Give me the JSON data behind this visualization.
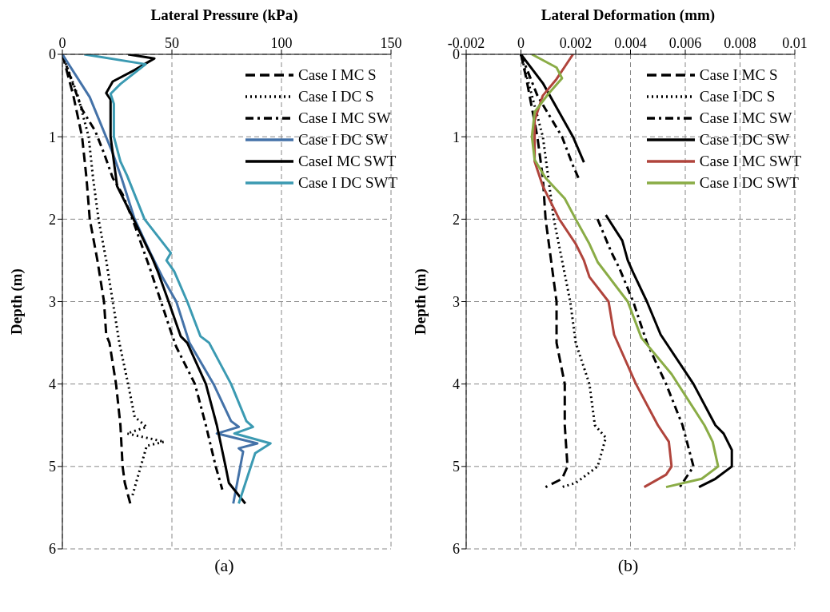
{
  "chart_data": [
    {
      "type": "line",
      "xlabel": "Lateral Pressure (kPa)",
      "ylabel": "Depth (m)",
      "xlim": [
        0,
        150
      ],
      "xticks": [
        0,
        50,
        100,
        150
      ],
      "ylim": [
        6,
        0
      ],
      "yticks": [
        0,
        1,
        2,
        3,
        4,
        5,
        6
      ],
      "grid": true,
      "legend": "top right",
      "annotations": [
        "(a)"
      ],
      "series": [
        {
          "name": "Case I MC S",
          "color": "#000000",
          "line_style": "dashed",
          "x": [
            0,
            5,
            9,
            11,
            12.5,
            16,
            19,
            20,
            21.5,
            24.5,
            26.5,
            27.5,
            28.5,
            31
          ],
          "values": [
            0,
            0.5,
            1,
            1.5,
            2,
            2.5,
            3,
            3.4,
            3.5,
            4,
            4.5,
            5,
            5.2,
            5.45
          ]
        },
        {
          "name": "Case I DC S",
          "color": "#000000",
          "line_style": "dotted",
          "x": [
            0,
            7,
            12,
            14,
            16.5,
            20,
            23,
            26,
            30,
            33,
            38.5,
            29.5,
            46.5,
            38.5,
            32
          ],
          "values": [
            0,
            0.5,
            1,
            1.5,
            2,
            2.5,
            3,
            3.5,
            4,
            4.4,
            4.52,
            4.6,
            4.7,
            4.75,
            5.35
          ]
        },
        {
          "name": "Case I MC SW",
          "color": "#000000",
          "line_style": "dashdot",
          "x": [
            0,
            4,
            9,
            15,
            19,
            23,
            27.5,
            32,
            36,
            40,
            45,
            50,
            52,
            60.5,
            65.5,
            70,
            73
          ],
          "values": [
            0,
            0.3,
            0.67,
            0.93,
            1.2,
            1.5,
            1.7,
            2,
            2.3,
            2.6,
            3,
            3.4,
            3.55,
            4,
            4.5,
            5,
            5.28
          ]
        },
        {
          "name": "Case I DC SW",
          "color": "#4472a8",
          "line_style": "solid",
          "x": [
            0,
            12.5,
            23,
            27,
            33,
            40,
            46,
            52,
            58,
            69,
            77,
            80.5,
            70.5,
            89,
            80.5,
            82.5,
            78
          ],
          "values": [
            0,
            0.52,
            1.2,
            1.5,
            2,
            2.4,
            2.72,
            3,
            3.5,
            4,
            4.45,
            4.52,
            4.6,
            4.72,
            4.78,
            4.82,
            5.45
          ]
        },
        {
          "name": "CaseI MC SWT",
          "color": "#000000",
          "line_style": "solid",
          "x": [
            30,
            42,
            33,
            23,
            20,
            22,
            22,
            23.5,
            25,
            32.5,
            41,
            43.5,
            48.5,
            54,
            57,
            65.5,
            70.5,
            74.5,
            76,
            83.5
          ],
          "values": [
            0,
            0.05,
            0.19,
            0.33,
            0.47,
            0.55,
            1,
            1.3,
            1.6,
            2,
            2.47,
            2.63,
            3,
            3.42,
            3.5,
            4,
            4.5,
            5,
            5.2,
            5.45
          ]
        },
        {
          "name": "Case I DC SWT",
          "color": "#3b9ab2",
          "line_style": "solid",
          "x": [
            10,
            38,
            26.5,
            22,
            23.5,
            23.5,
            26.5,
            29.5,
            37.5,
            49.5,
            47.5,
            51,
            57,
            63,
            67,
            77,
            84,
            87,
            78.5,
            95,
            88,
            80.5
          ],
          "values": [
            0,
            0.12,
            0.36,
            0.48,
            0.6,
            1,
            1.3,
            1.47,
            2,
            2.41,
            2.5,
            2.63,
            3,
            3.42,
            3.5,
            4,
            4.45,
            4.52,
            4.6,
            4.72,
            4.84,
            5.45
          ]
        }
      ]
    },
    {
      "type": "line",
      "xlabel": "Lateral Deformation (mm)",
      "ylabel": "Depth (m)",
      "xlim": [
        -0.002,
        0.01
      ],
      "xticks": [
        -0.002,
        0,
        0.002,
        0.004,
        0.006,
        0.008,
        0.01
      ],
      "ylim": [
        6,
        0
      ],
      "yticks": [
        0,
        1,
        2,
        3,
        4,
        5,
        6
      ],
      "grid": true,
      "legend": "top right",
      "annotations": [
        "(b)"
      ],
      "series": [
        {
          "name": "Case I MC S",
          "color": "#000000",
          "line_style": "dashed",
          "x": [
            0,
            0.0002,
            0.0006,
            0.0008,
            0.0009,
            0.0011,
            0.0013,
            0.0013,
            0.0016,
            0.0016,
            0.0017,
            0.0015,
            0.0009
          ],
          "values": [
            0,
            0.3,
            1,
            1.5,
            2,
            2.5,
            3,
            3.5,
            4,
            4.5,
            5,
            5.15,
            5.25
          ]
        },
        {
          "name": "Case I DC S",
          "color": "#000000",
          "line_style": "dotted",
          "x": [
            0,
            0.0004,
            0.0008,
            0.001,
            0.0012,
            0.0015,
            0.0018,
            0.002,
            0.0025,
            0.0027,
            0.0031,
            0.0028,
            0.002,
            0.0015
          ],
          "values": [
            0,
            0.5,
            1,
            1.5,
            2,
            2.5,
            3,
            3.5,
            4,
            4.5,
            4.65,
            5,
            5.2,
            5.25
          ]
        },
        {
          "name": "Case I MC SW",
          "color": "#000000",
          "line_style": "dashdot",
          "x": [
            0,
            0.0006,
            0.0015,
            0.0019,
            0.0021,
            null,
            0.0028,
            0.0033,
            0.0036,
            0.0041,
            0.0046,
            0.0053,
            0.0059,
            0.0063,
            0.0058
          ],
          "values": [
            0,
            0.5,
            1,
            1.35,
            1.5,
            null,
            2,
            2.4,
            2.6,
            3,
            3.5,
            4,
            4.5,
            5,
            5.25
          ]
        },
        {
          "name": "Case I DC SW",
          "color": "#000000",
          "line_style": "solid",
          "x": [
            0,
            0.0008,
            0.0019,
            0.0023,
            null,
            0.0031,
            0.0037,
            0.0039,
            0.0041,
            0.0046,
            0.0051,
            0.0063,
            0.0071,
            0.0074,
            0.0077,
            0.0077,
            0.0071,
            0.0065
          ],
          "values": [
            0,
            0.35,
            1,
            1.31,
            null,
            1.95,
            2.26,
            2.5,
            2.65,
            3,
            3.4,
            4,
            4.5,
            4.6,
            4.8,
            5,
            5.15,
            5.25
          ]
        },
        {
          "name": "Case I MC SWT",
          "color": "#b0443c",
          "line_style": "solid",
          "x": [
            0.0019,
            0.0016,
            0.0013,
            0.0008,
            0.0005,
            0.0005,
            0.0005,
            0.0006,
            0.0008,
            0.0014,
            0.002,
            0.0023,
            0.0025,
            0.0032,
            0.0034,
            0.0042,
            0.005,
            0.0054,
            0.0055,
            0.0053,
            0.0045
          ],
          "values": [
            0,
            0.15,
            0.3,
            0.5,
            0.8,
            1,
            1.3,
            1.4,
            1.6,
            2,
            2.3,
            2.5,
            2.7,
            3,
            3.4,
            4,
            4.5,
            4.7,
            5,
            5.1,
            5.25
          ]
        },
        {
          "name": "Case I DC SWT",
          "color": "#8aac46",
          "line_style": "solid",
          "x": [
            0.0004,
            0.0013,
            0.0015,
            0.001,
            0.0005,
            0.0004,
            0.0005,
            0.0009,
            0.0016,
            0.002,
            0.0025,
            0.0028,
            0.0039,
            0.0044,
            0.0055,
            0.0067,
            0.007,
            0.0072,
            0.0066,
            0.0053
          ],
          "values": [
            0,
            0.16,
            0.29,
            0.48,
            0.7,
            1,
            1.28,
            1.5,
            1.75,
            2,
            2.3,
            2.52,
            3,
            3.44,
            3.88,
            4.5,
            4.7,
            5,
            5.15,
            5.25
          ]
        }
      ]
    }
  ]
}
